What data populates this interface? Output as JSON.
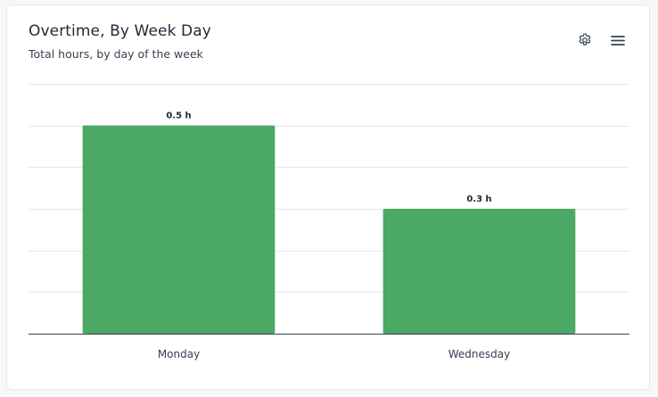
{
  "header": {
    "title": "Overtime, By Week Day",
    "subtitle": "Total hours, by day of the week"
  },
  "toolbar": {
    "settings_icon": "gear-icon",
    "menu_icon": "hamburger-menu-icon"
  },
  "chart_data": {
    "type": "bar",
    "categories": [
      "Monday",
      "Wednesday"
    ],
    "values": [
      0.5,
      0.3
    ],
    "value_labels": [
      "0.5 h",
      "0.3 h"
    ],
    "ylim": [
      0,
      0.6
    ],
    "grid": true,
    "legend": "none",
    "bar_color": "#4ba865"
  }
}
